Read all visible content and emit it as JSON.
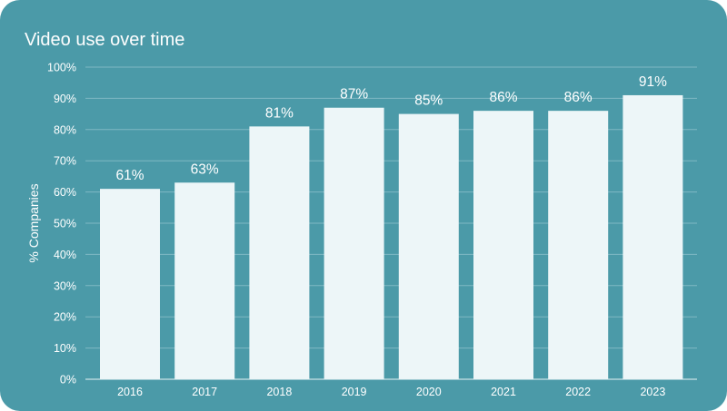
{
  "chart_data": {
    "type": "bar",
    "title": "Video use over time",
    "xlabel": "",
    "ylabel": "% Companies",
    "categories": [
      "2016",
      "2017",
      "2018",
      "2019",
      "2020",
      "2021",
      "2022",
      "2023"
    ],
    "values": [
      61,
      63,
      81,
      87,
      85,
      86,
      86,
      91
    ],
    "value_labels": [
      "61%",
      "63%",
      "81%",
      "87%",
      "85%",
      "86%",
      "86%",
      "91%"
    ],
    "ylim": [
      0,
      100
    ],
    "yticks": [
      0,
      10,
      20,
      30,
      40,
      50,
      60,
      70,
      80,
      90,
      100
    ],
    "ytick_labels": [
      "0%",
      "10%",
      "20%",
      "30%",
      "40%",
      "50%",
      "60%",
      "70%",
      "80%",
      "90%",
      "100%"
    ],
    "grid": true,
    "legend": "none"
  },
  "colors": {
    "background": "#4B9AA8",
    "bar": "#EDF6F8",
    "text": "#FFFFFF",
    "grid": "#7FB8C3",
    "axis": "#EAF4F6"
  }
}
